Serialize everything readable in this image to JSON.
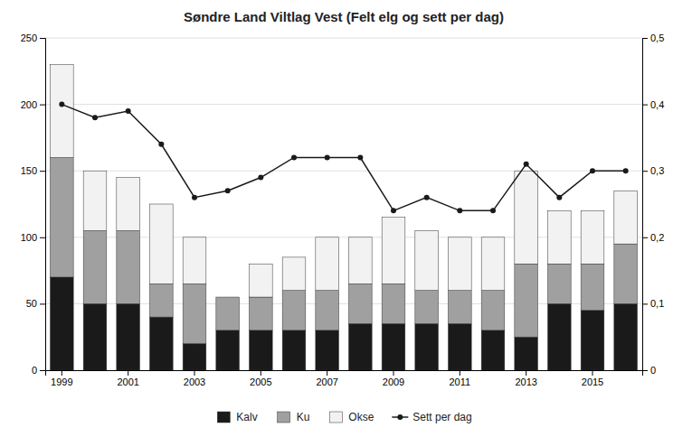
{
  "chart_data": {
    "type": "bar",
    "title": "Søndre Land Viltlag Vest (Felt elg og sett per dag)",
    "categories": [
      "1999",
      null,
      "2001",
      null,
      "2003",
      null,
      "2005",
      null,
      "2007",
      null,
      "2009",
      null,
      "2011",
      null,
      "2013",
      null,
      "2015",
      null
    ],
    "series": [
      {
        "name": "Kalv",
        "color": "#1a1a1a",
        "values": [
          70,
          50,
          50,
          40,
          20,
          30,
          30,
          30,
          30,
          35,
          35,
          35,
          35,
          30,
          25,
          50,
          45,
          50
        ]
      },
      {
        "name": "Ku",
        "color": "#a0a0a0",
        "values": [
          90,
          55,
          55,
          25,
          45,
          25,
          25,
          30,
          30,
          30,
          30,
          25,
          25,
          30,
          55,
          30,
          35,
          45
        ]
      },
      {
        "name": "Okse",
        "color": "#f2f2f2",
        "values": [
          70,
          45,
          40,
          60,
          35,
          0,
          25,
          25,
          40,
          35,
          50,
          45,
          40,
          40,
          70,
          40,
          40,
          40
        ]
      },
      {
        "name": "Sett per dag",
        "type": "line",
        "axis": "y2",
        "color": "#1a1a1a",
        "marker": "circle",
        "line_style": "solid",
        "values": [
          0.4,
          0.38,
          0.39,
          0.34,
          0.26,
          0.27,
          0.29,
          0.32,
          0.32,
          0.32,
          0.24,
          0.26,
          0.24,
          0.24,
          0.31,
          0.26,
          0.3,
          0.3
        ]
      }
    ],
    "stacked": true,
    "ylim": [
      0,
      250
    ],
    "yticks": [
      0,
      50,
      100,
      150,
      200,
      250
    ],
    "y2lim": [
      0,
      0.5
    ],
    "y2ticks": [
      0,
      {
        "value": 0.1,
        "label": "0,1"
      },
      {
        "value": 0.2,
        "label": "0,2"
      },
      {
        "value": 0.3,
        "label": "0,3"
      },
      {
        "value": 0.4,
        "label": "0,4"
      },
      {
        "value": 0.5,
        "label": "0,5"
      }
    ],
    "grid": true,
    "legend": "bottom"
  }
}
